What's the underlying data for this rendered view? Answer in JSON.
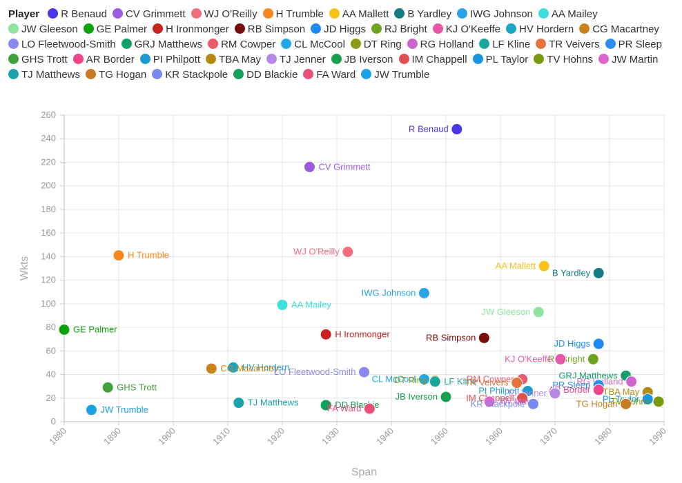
{
  "chart_data": {
    "type": "scatter",
    "legend_title": "Player",
    "legend_placement": "top",
    "xlabel": "Span",
    "ylabel": "Wkts",
    "xlim": [
      1880,
      1990
    ],
    "ylim": [
      0,
      260
    ],
    "xticks": [
      1880,
      1890,
      1900,
      1910,
      1920,
      1930,
      1940,
      1950,
      1960,
      1970,
      1980,
      1990
    ],
    "yticks": [
      0,
      20,
      40,
      60,
      80,
      100,
      120,
      140,
      160,
      180,
      200,
      220,
      240,
      260
    ],
    "grid": true,
    "series": [
      {
        "name": "R Benaud",
        "color": "#4936e8",
        "x": 1952,
        "y": 248,
        "label_side": "left"
      },
      {
        "name": "CV Grimmett",
        "color": "#9b5be0",
        "x": 1925,
        "y": 216,
        "label_side": "right"
      },
      {
        "name": "WJ O'Reilly",
        "color": "#f26d7d",
        "x": 1932,
        "y": 144,
        "label_side": "left"
      },
      {
        "name": "H Trumble",
        "color": "#f7861f",
        "x": 1890,
        "y": 141,
        "label_side": "right"
      },
      {
        "name": "AA Mallett",
        "color": "#f9c21a",
        "x": 1968,
        "y": 132,
        "label_side": "left"
      },
      {
        "name": "B Yardley",
        "color": "#137b86",
        "x": 1978,
        "y": 126,
        "label_side": "left"
      },
      {
        "name": "IWG Johnson",
        "color": "#29a3e8",
        "x": 1946,
        "y": 109,
        "label_side": "left"
      },
      {
        "name": "AA Mailey",
        "color": "#3fdddb",
        "x": 1920,
        "y": 99,
        "label_side": "right"
      },
      {
        "name": "JW Gleeson",
        "color": "#8ee39e",
        "x": 1967,
        "y": 93,
        "label_side": "left"
      },
      {
        "name": "GE Palmer",
        "color": "#0ba30b",
        "x": 1880,
        "y": 78,
        "label_side": "right"
      },
      {
        "name": "H Ironmonger",
        "color": "#c92222",
        "x": 1928,
        "y": 74,
        "label_side": "right"
      },
      {
        "name": "RB Simpson",
        "color": "#7b0c0c",
        "x": 1957,
        "y": 71,
        "label_side": "left"
      },
      {
        "name": "JD Higgs",
        "color": "#1e8af0",
        "x": 1978,
        "y": 66,
        "label_side": "left"
      },
      {
        "name": "RJ Bright",
        "color": "#6ea31d",
        "x": 1977,
        "y": 53,
        "label_side": "left"
      },
      {
        "name": "KJ O'Keeffe",
        "color": "#e857a6",
        "x": 1971,
        "y": 53,
        "label_side": "left"
      },
      {
        "name": "HV Hordern",
        "color": "#1aa6c3",
        "x": 1911,
        "y": 46,
        "label_side": "right"
      },
      {
        "name": "CG Macartney",
        "color": "#c8831a",
        "x": 1907,
        "y": 45,
        "label_side": "right"
      },
      {
        "name": "LO Fleetwood-Smith",
        "color": "#8888ee",
        "x": 1935,
        "y": 42,
        "label_side": "left"
      },
      {
        "name": "GRJ Matthews",
        "color": "#12a06a",
        "x": 1983,
        "y": 39,
        "label_side": "left"
      },
      {
        "name": "RM Cowper",
        "color": "#ea5b6e",
        "x": 1964,
        "y": 36,
        "label_side": "left"
      },
      {
        "name": "CL McCool",
        "color": "#20a8ea",
        "x": 1946,
        "y": 36,
        "label_side": "left"
      },
      {
        "name": "DT Ring",
        "color": "#8d9a12",
        "x": 1948,
        "y": 35,
        "label_side": "left"
      },
      {
        "name": "RG Holland",
        "color": "#cc66cc",
        "x": 1984,
        "y": 34,
        "label_side": "left"
      },
      {
        "name": "LF Kline",
        "color": "#1aa69a",
        "x": 1948,
        "y": 34,
        "label_side": "right"
      },
      {
        "name": "TR Veivers",
        "color": "#e8723c",
        "x": 1963,
        "y": 33,
        "label_side": "left"
      },
      {
        "name": "PR Sleep",
        "color": "#2a8ef0",
        "x": 1978,
        "y": 31,
        "label_side": "left"
      },
      {
        "name": "GHS Trott",
        "color": "#3ea13c",
        "x": 1888,
        "y": 29,
        "label_side": "right"
      },
      {
        "name": "AR Border",
        "color": "#ee4488",
        "x": 1978,
        "y": 27,
        "label_side": "left"
      },
      {
        "name": "PI Philpott",
        "color": "#1f9ad0",
        "x": 1965,
        "y": 26,
        "label_side": "left"
      },
      {
        "name": "TBA May",
        "color": "#b38a12",
        "x": 1987,
        "y": 25,
        "label_side": "left"
      },
      {
        "name": "TJ Jenner",
        "color": "#b58ae6",
        "x": 1970,
        "y": 24,
        "label_side": "left"
      },
      {
        "name": "JB Iverson",
        "color": "#18a050",
        "x": 1950,
        "y": 21,
        "label_side": "left"
      },
      {
        "name": "IM Chappell",
        "color": "#e0504c",
        "x": 1964,
        "y": 20,
        "label_side": "left"
      },
      {
        "name": "PL Taylor",
        "color": "#1696e0",
        "x": 1987,
        "y": 19,
        "label_side": "left"
      },
      {
        "name": "TV Hohns",
        "color": "#789a10",
        "x": 1989,
        "y": 17,
        "label_side": "left"
      },
      {
        "name": "JW Martin",
        "color": "#de66c8",
        "x": 1958,
        "y": 17,
        "label_side": "right"
      },
      {
        "name": "TJ Matthews",
        "color": "#1aa3ad",
        "x": 1912,
        "y": 16,
        "label_side": "right"
      },
      {
        "name": "TG Hogan",
        "color": "#c87a1e",
        "x": 1983,
        "y": 15,
        "label_side": "left"
      },
      {
        "name": "KR Stackpole",
        "color": "#7788ee",
        "x": 1966,
        "y": 15,
        "label_side": "left"
      },
      {
        "name": "DD Blackie",
        "color": "#11a05a",
        "x": 1928,
        "y": 14,
        "label_side": "right"
      },
      {
        "name": "FA Ward",
        "color": "#ea4f75",
        "x": 1936,
        "y": 11,
        "label_side": "left"
      },
      {
        "name": "JW Trumble",
        "color": "#1ba0ea",
        "x": 1885,
        "y": 10,
        "label_side": "right"
      }
    ]
  }
}
